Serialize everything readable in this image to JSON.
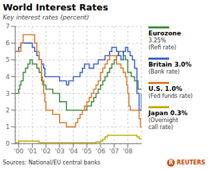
{
  "chart_data": {
    "type": "step",
    "title": "World Interest Rates",
    "subtitle": "Key interest rates (percent)",
    "source": "Sources: National/EU central banks",
    "credit": "REUTERS",
    "credit_mark": "R",
    "xlim": [
      1999.75,
      2009.0
    ],
    "xticks": [
      {
        "value": 2000,
        "label": "'00"
      },
      {
        "value": 2001,
        "label": "'01"
      },
      {
        "value": 2002,
        "label": "'02"
      },
      {
        "value": 2003,
        "label": "'03"
      },
      {
        "value": 2004,
        "label": "'04"
      },
      {
        "value": 2005,
        "label": "'05"
      },
      {
        "value": 2006,
        "label": "'06"
      },
      {
        "value": 2007,
        "label": "'07"
      },
      {
        "value": 2008,
        "label": "'08"
      }
    ],
    "ylim": [
      0,
      7
    ],
    "yticks": [
      0,
      1,
      2,
      3,
      4,
      5,
      6,
      7
    ],
    "grid": true,
    "series": [
      {
        "name": "Eurozone",
        "legend_lines": [
          "3.25%",
          "(Refi rate)"
        ],
        "color": "#3d8c3d",
        "x": [
          1999.75,
          2000.0,
          2000.08,
          2000.17,
          2000.33,
          2000.5,
          2000.67,
          2000.83,
          2001.0,
          2001.33,
          2001.5,
          2001.67,
          2001.83,
          2002.0,
          2002.5,
          2003.0,
          2003.5,
          2003.67,
          2004.0,
          2004.5,
          2005.0,
          2005.33,
          2005.5,
          2005.67,
          2005.83,
          2006.0,
          2006.17,
          2006.33,
          2006.5,
          2006.67,
          2006.83,
          2007.0,
          2007.17,
          2007.33,
          2007.5,
          2007.67,
          2007.83,
          2008.0,
          2008.25,
          2008.5,
          2008.75,
          2009.0
        ],
        "values": [
          3.0,
          3.25,
          3.5,
          3.75,
          4.25,
          4.5,
          4.75,
          5.0,
          4.75,
          4.5,
          4.25,
          3.75,
          3.5,
          3.25,
          3.0,
          2.5,
          2.0,
          2.0,
          2.0,
          2.0,
          2.25,
          2.5,
          2.75,
          3.0,
          3.25,
          3.5,
          3.75,
          4.0,
          4.25,
          4.5,
          4.75,
          5.0,
          5.25,
          5.5,
          5.5,
          5.25,
          5.0,
          4.25,
          4.0,
          3.75,
          3.25,
          3.25
        ]
      },
      {
        "name": "Britain 3.0%",
        "legend_lines": [
          "(Bank rate)"
        ],
        "color": "#3a5fcd",
        "x": [
          1999.75,
          2000.0,
          2000.17,
          2000.5,
          2001.0,
          2001.17,
          2001.33,
          2001.5,
          2001.67,
          2001.83,
          2001.92,
          2002.0,
          2002.5,
          2003.0,
          2003.5,
          2003.67,
          2003.83,
          2004.0,
          2004.5,
          2004.67,
          2004.83,
          2005.0,
          2005.17,
          2005.5,
          2005.83,
          2006.0,
          2006.33,
          2006.67,
          2006.83,
          2007.0,
          2007.17,
          2007.33,
          2007.5,
          2007.67,
          2007.83,
          2008.0,
          2008.17,
          2008.33,
          2008.5,
          2008.67,
          2008.83,
          2008.92,
          2009.0
        ],
        "values": [
          5.5,
          5.75,
          6.0,
          6.0,
          5.75,
          5.5,
          5.25,
          5.0,
          4.75,
          4.5,
          4.0,
          4.0,
          4.0,
          3.75,
          3.5,
          3.75,
          3.75,
          4.0,
          4.25,
          4.5,
          4.75,
          4.75,
          4.5,
          4.75,
          5.0,
          5.0,
          5.25,
          5.5,
          5.75,
          5.75,
          5.5,
          5.25,
          5.0,
          5.5,
          5.75,
          5.5,
          5.25,
          5.0,
          4.5,
          3.0,
          2.0,
          2.0,
          3.0
        ]
      },
      {
        "name": "U.S. 1.0%",
        "legend_lines": [
          "(Fed funds rate)"
        ],
        "color": "#e07828",
        "x": [
          1999.75,
          2000.0,
          2000.17,
          2000.33,
          2000.5,
          2001.0,
          2001.17,
          2001.33,
          2001.5,
          2001.67,
          2001.75,
          2001.83,
          2001.92,
          2002.0,
          2002.5,
          2003.0,
          2003.5,
          2003.67,
          2004.0,
          2004.17,
          2004.33,
          2004.5,
          2004.67,
          2004.83,
          2005.0,
          2005.17,
          2005.33,
          2005.5,
          2005.67,
          2005.83,
          2006.0,
          2006.17,
          2006.33,
          2006.5,
          2006.67,
          2006.83,
          2007.0,
          2007.17,
          2007.5,
          2007.67,
          2007.83,
          2007.92,
          2008.0,
          2008.08,
          2008.17,
          2008.33,
          2008.5,
          2008.67,
          2008.83,
          2008.92,
          2009.0
        ],
        "values": [
          5.5,
          5.5,
          6.0,
          6.5,
          6.5,
          6.5,
          6.0,
          5.5,
          5.0,
          4.0,
          3.5,
          3.0,
          2.5,
          2.0,
          1.75,
          1.25,
          1.0,
          1.0,
          1.0,
          1.25,
          1.5,
          1.75,
          2.0,
          2.25,
          2.5,
          2.75,
          3.0,
          3.25,
          3.5,
          3.75,
          4.25,
          4.5,
          4.75,
          5.0,
          5.25,
          5.25,
          5.25,
          4.75,
          4.5,
          4.25,
          4.0,
          3.5,
          3.0,
          2.25,
          2.0,
          2.0,
          2.0,
          2.0,
          1.5,
          1.0,
          1.0
        ]
      },
      {
        "name": "Japan 0.3%",
        "legend_lines": [
          "(Overnight",
          "call rate)"
        ],
        "color": "#c8a800",
        "x": [
          1999.75,
          2000.0,
          2000.5,
          2001.0,
          2001.5,
          2002.0,
          2002.5,
          2003.0,
          2003.5,
          2004.0,
          2004.5,
          2005.0,
          2005.5,
          2005.67,
          2006.0,
          2006.17,
          2006.33,
          2006.5,
          2006.67,
          2006.83,
          2007.0,
          2007.17,
          2007.5,
          2008.0,
          2008.5,
          2008.67,
          2008.83,
          2009.0
        ],
        "values": [
          0.05,
          0.15,
          0.15,
          0.15,
          0.05,
          0.05,
          0.05,
          0.05,
          0.05,
          0.05,
          0.05,
          0.05,
          0.05,
          0.1,
          0.15,
          0.25,
          0.4,
          0.5,
          0.5,
          0.5,
          0.5,
          0.5,
          0.5,
          0.5,
          0.5,
          0.4,
          0.3,
          0.3
        ]
      }
    ]
  }
}
